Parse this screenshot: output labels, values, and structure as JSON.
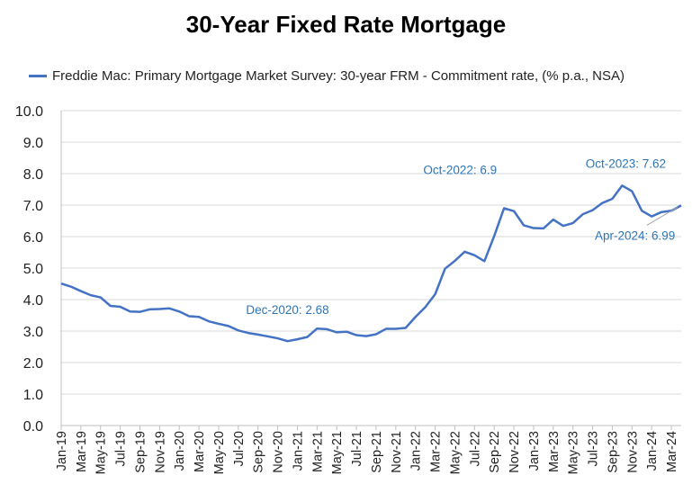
{
  "chart_data": {
    "type": "line",
    "title": "30-Year Fixed Rate Mortgage",
    "xlabel": "",
    "ylabel": "",
    "ylim": [
      0,
      10
    ],
    "yticks": [
      "0.0",
      "1.0",
      "2.0",
      "3.0",
      "4.0",
      "5.0",
      "6.0",
      "7.0",
      "8.0",
      "9.0",
      "10.0"
    ],
    "grid": "horizontal",
    "legend_position": "top",
    "colors": {
      "series": "#4472C4",
      "annotation": "#2E75B6",
      "grid": "#d9d9d9"
    },
    "x": [
      "Jan-19",
      "Feb-19",
      "Mar-19",
      "Apr-19",
      "May-19",
      "Jun-19",
      "Jul-19",
      "Aug-19",
      "Sep-19",
      "Oct-19",
      "Nov-19",
      "Dec-19",
      "Jan-20",
      "Feb-20",
      "Mar-20",
      "Apr-20",
      "May-20",
      "Jun-20",
      "Jul-20",
      "Aug-20",
      "Sep-20",
      "Oct-20",
      "Nov-20",
      "Dec-20",
      "Jan-21",
      "Feb-21",
      "Mar-21",
      "Apr-21",
      "May-21",
      "Jun-21",
      "Jul-21",
      "Aug-21",
      "Sep-21",
      "Oct-21",
      "Nov-21",
      "Dec-21",
      "Jan-22",
      "Feb-22",
      "Mar-22",
      "Apr-22",
      "May-22",
      "Jun-22",
      "Jul-22",
      "Aug-22",
      "Sep-22",
      "Oct-22",
      "Nov-22",
      "Dec-22",
      "Jan-23",
      "Feb-23",
      "Mar-23",
      "Apr-23",
      "May-23",
      "Jun-23",
      "Jul-23",
      "Aug-23",
      "Sep-23",
      "Oct-23",
      "Nov-23",
      "Dec-23",
      "Jan-24",
      "Feb-24",
      "Mar-24",
      "Apr-24"
    ],
    "xtick_labels": [
      "Jan-19",
      "Mar-19",
      "May-19",
      "Jul-19",
      "Sep-19",
      "Nov-19",
      "Jan-20",
      "Mar-20",
      "May-20",
      "Jul-20",
      "Sep-20",
      "Nov-20",
      "Jan-21",
      "Mar-21",
      "May-21",
      "Jul-21",
      "Sep-21",
      "Nov-21",
      "Jan-22",
      "Mar-22",
      "May-22",
      "Jul-22",
      "Sep-22",
      "Nov-22",
      "Jan-23",
      "Mar-23",
      "May-23",
      "Jul-23",
      "Sep-23",
      "Nov-23",
      "Jan-24",
      "Mar-24"
    ],
    "series": [
      {
        "name": "Freddie Mac: Primary Mortgage Market Survey: 30-year FRM - Commitment rate, (% p.a., NSA)",
        "values": [
          4.51,
          4.41,
          4.27,
          4.14,
          4.07,
          3.8,
          3.77,
          3.62,
          3.61,
          3.69,
          3.7,
          3.72,
          3.62,
          3.47,
          3.45,
          3.31,
          3.23,
          3.16,
          3.02,
          2.94,
          2.89,
          2.83,
          2.77,
          2.68,
          2.74,
          2.81,
          3.08,
          3.06,
          2.96,
          2.98,
          2.87,
          2.84,
          2.9,
          3.07,
          3.07,
          3.1,
          3.45,
          3.76,
          4.17,
          4.98,
          5.23,
          5.52,
          5.41,
          5.22,
          6.02,
          6.9,
          6.81,
          6.36,
          6.27,
          6.26,
          6.54,
          6.34,
          6.43,
          6.71,
          6.84,
          7.07,
          7.2,
          7.62,
          7.44,
          6.82,
          6.64,
          6.78,
          6.82,
          6.99
        ]
      }
    ],
    "annotations": [
      {
        "label": "Dec-2020: 2.68",
        "x": "Dec-20",
        "y": 2.68
      },
      {
        "label": "Oct-2022: 6.9",
        "x": "Oct-22",
        "y": 6.9
      },
      {
        "label": "Oct-2023: 7.62",
        "x": "Oct-23",
        "y": 7.62
      },
      {
        "label": "Apr-2024: 6.99",
        "x": "Apr-24",
        "y": 6.99
      }
    ]
  }
}
